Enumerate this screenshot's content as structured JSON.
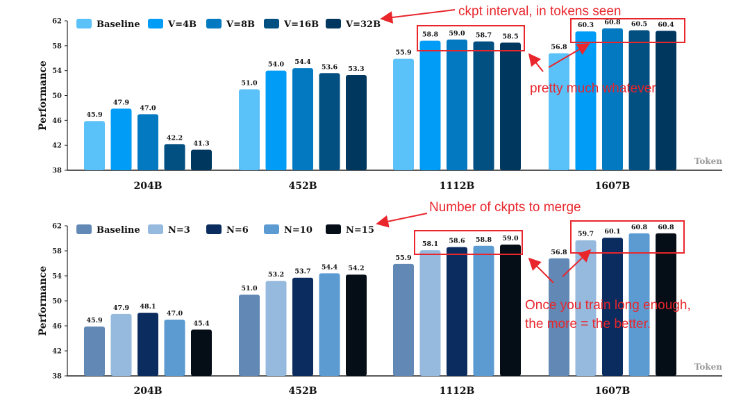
{
  "colors": {
    "annotation": "#e8262c",
    "axis": "#222222",
    "xunit": "#9a9a9a"
  },
  "chart_data": [
    {
      "type": "bar",
      "ylabel": "Performance",
      "xlabel": "Token",
      "ylim": [
        38,
        62
      ],
      "yticks": [
        38,
        42,
        46,
        50,
        54,
        58,
        62
      ],
      "categories": [
        "204B",
        "452B",
        "1112B",
        "1607B"
      ],
      "legend_position": "top-left",
      "grid": false,
      "series": [
        {
          "name": "Baseline",
          "color": "#5ac1f9",
          "values": [
            45.9,
            51.0,
            55.9,
            56.8
          ]
        },
        {
          "name": "V=4B",
          "color": "#019cf5",
          "values": [
            47.9,
            54.0,
            58.8,
            60.3
          ]
        },
        {
          "name": "V=8B",
          "color": "#0279c1",
          "values": [
            47.0,
            54.4,
            59.0,
            60.8
          ]
        },
        {
          "name": "V=16B",
          "color": "#024f82",
          "values": [
            42.2,
            53.6,
            58.7,
            60.5
          ]
        },
        {
          "name": "V=32B",
          "color": "#00375f",
          "values": [
            41.3,
            53.3,
            58.5,
            60.4
          ]
        }
      ],
      "value_labels": [
        [
          "45.9",
          "51.0",
          "55.9",
          "56.8"
        ],
        [
          "47.9",
          "54.0",
          "58.8",
          "60.3"
        ],
        [
          "47.0",
          "54.4",
          "59.0",
          "60.8"
        ],
        [
          "42.2",
          "53.6",
          "58.7",
          "60.5"
        ],
        [
          "41.3",
          "53.3",
          "58.5",
          "60.4"
        ]
      ],
      "annotations": [
        "ckpt interval, in tokens seen",
        "pretty much whatever"
      ]
    },
    {
      "type": "bar",
      "ylabel": "Performance",
      "xlabel": "Token",
      "ylim": [
        38,
        62
      ],
      "yticks": [
        38,
        42,
        46,
        50,
        54,
        58,
        62
      ],
      "categories": [
        "204B",
        "452B",
        "1112B",
        "1607B"
      ],
      "legend_position": "top-left",
      "grid": false,
      "series": [
        {
          "name": "Baseline",
          "color": "#6289b6",
          "values": [
            45.9,
            51.0,
            55.9,
            56.8
          ]
        },
        {
          "name": "N=3",
          "color": "#96b9de",
          "values": [
            47.9,
            53.2,
            58.1,
            59.7
          ]
        },
        {
          "name": "N=6",
          "color": "#0a2c5e",
          "values": [
            48.1,
            53.7,
            58.6,
            60.1
          ]
        },
        {
          "name": "N=10",
          "color": "#5b9bd2",
          "values": [
            47.0,
            54.4,
            58.8,
            60.8
          ]
        },
        {
          "name": "N=15",
          "color": "#050d17",
          "values": [
            45.4,
            54.2,
            59.0,
            60.8
          ]
        }
      ],
      "value_labels": [
        [
          "45.9",
          "51.0",
          "55.9",
          "56.8"
        ],
        [
          "47.9",
          "53.2",
          "58.1",
          "59.7"
        ],
        [
          "48.1",
          "53.7",
          "58.6",
          "60.1"
        ],
        [
          "47.0",
          "54.4",
          "58.8",
          "60.8"
        ],
        [
          "45.4",
          "54.2",
          "59.0",
          "60.8"
        ]
      ],
      "annotations": [
        "Number of ckpts to merge",
        "Once you train long enough,",
        "the more = the better."
      ]
    }
  ]
}
